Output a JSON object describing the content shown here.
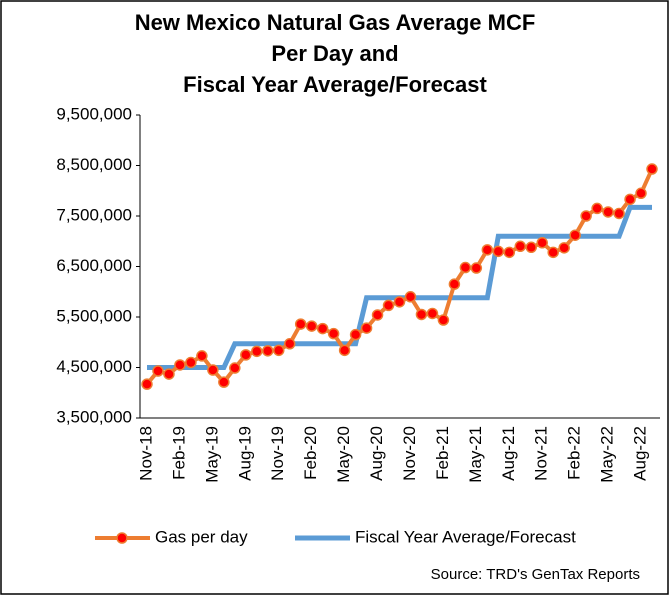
{
  "chart_data": {
    "type": "line",
    "title": [
      "New Mexico Natural Gas Average MCF",
      "Per Day and",
      "Fiscal Year Average/Forecast"
    ],
    "source": "Source: TRD's GenTax Reports",
    "categories": [
      "Nov-18",
      null,
      null,
      "Feb-19",
      null,
      null,
      "May-19",
      null,
      null,
      "Aug-19",
      null,
      null,
      "Nov-19",
      null,
      null,
      "Feb-20",
      null,
      null,
      "May-20",
      null,
      null,
      "Aug-20",
      null,
      null,
      "Nov-20",
      null,
      null,
      "Feb-21",
      null,
      null,
      "May-21",
      null,
      null,
      "Aug-21",
      null,
      null,
      "Nov-21",
      null,
      null,
      "Feb-22",
      null,
      null,
      "May-22",
      null,
      null,
      "Aug-22",
      null
    ],
    "series": [
      {
        "name": "Gas per day",
        "color": "#ed7d31",
        "marker_color": "#ff0000",
        "values": [
          4170000,
          4430000,
          4370000,
          4550000,
          4600000,
          4730000,
          4450000,
          4210000,
          4490000,
          4750000,
          4820000,
          4830000,
          4840000,
          4970000,
          5360000,
          5320000,
          5270000,
          5170000,
          4840000,
          5150000,
          5280000,
          5540000,
          5730000,
          5800000,
          5900000,
          5550000,
          5570000,
          5440000,
          6150000,
          6480000,
          6470000,
          6830000,
          6800000,
          6780000,
          6900000,
          6880000,
          6970000,
          6780000,
          6870000,
          7120000,
          7500000,
          7650000,
          7580000,
          7550000,
          7830000,
          7950000,
          8430000
        ]
      },
      {
        "name": "Fiscal Year Average/Forecast",
        "color": "#5b9bd5",
        "values": [
          4500000,
          4500000,
          4500000,
          4500000,
          4500000,
          4500000,
          4500000,
          4500000,
          4970000,
          4970000,
          4970000,
          4970000,
          4970000,
          4970000,
          4970000,
          4970000,
          4970000,
          4970000,
          4970000,
          4970000,
          5880000,
          5880000,
          5880000,
          5880000,
          5880000,
          5880000,
          5880000,
          5880000,
          5880000,
          5880000,
          5880000,
          5880000,
          7100000,
          7100000,
          7100000,
          7100000,
          7100000,
          7100000,
          7100000,
          7100000,
          7100000,
          7100000,
          7100000,
          7100000,
          7670000,
          7670000,
          7670000
        ]
      }
    ],
    "ylim": [
      3500000,
      9500000
    ],
    "yticks": [
      {
        "value": 3500000,
        "label": "3,500,000"
      },
      {
        "value": 4500000,
        "label": "4,500,000"
      },
      {
        "value": 5500000,
        "label": "5,500,000"
      },
      {
        "value": 6500000,
        "label": "6,500,000"
      },
      {
        "value": 7500000,
        "label": "7,500,000"
      },
      {
        "value": 8500000,
        "label": "8,500,000"
      },
      {
        "value": 9500000,
        "label": "9,500,000"
      }
    ],
    "grid": false,
    "legend": "bottom"
  }
}
